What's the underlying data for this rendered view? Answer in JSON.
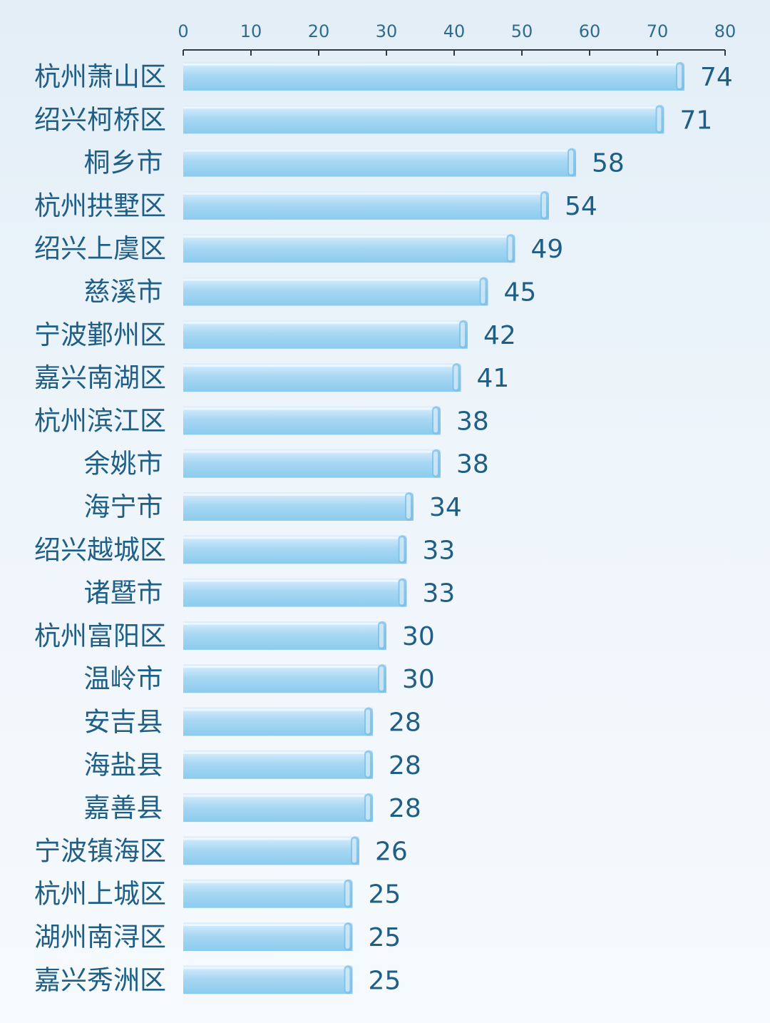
{
  "chart_data": {
    "type": "bar",
    "orientation": "horizontal",
    "categories": [
      "杭州萧山区",
      "绍兴柯桥区",
      "桐乡市",
      "杭州拱墅区",
      "绍兴上虞区",
      "慈溪市",
      "宁波鄞州区",
      "嘉兴南湖区",
      "杭州滨江区",
      "余姚市",
      "海宁市",
      "绍兴越城区",
      "诸暨市",
      "杭州富阳区",
      "温岭市",
      "安吉县",
      "海盐县",
      "嘉善县",
      "宁波镇海区",
      "杭州上城区",
      "湖州南浔区",
      "嘉兴秀洲区"
    ],
    "values": [
      74,
      71,
      58,
      54,
      49,
      45,
      42,
      41,
      38,
      38,
      34,
      33,
      33,
      30,
      30,
      28,
      28,
      28,
      26,
      25,
      25,
      25
    ],
    "xlim": [
      0,
      80
    ],
    "x_ticks": [
      0,
      10,
      20,
      30,
      40,
      50,
      60,
      70,
      80
    ],
    "axis_position": "top",
    "grid": false,
    "legend": "none",
    "colors": {
      "bar_top": "#dcefff",
      "bar_mid": "#a9d8f3",
      "bar_bottom": "#8ccbee",
      "bar_edge": "#79bde6",
      "label": "#1f5f86",
      "axis": "#2e3a44",
      "tick_label": "#2e6c8e"
    }
  }
}
